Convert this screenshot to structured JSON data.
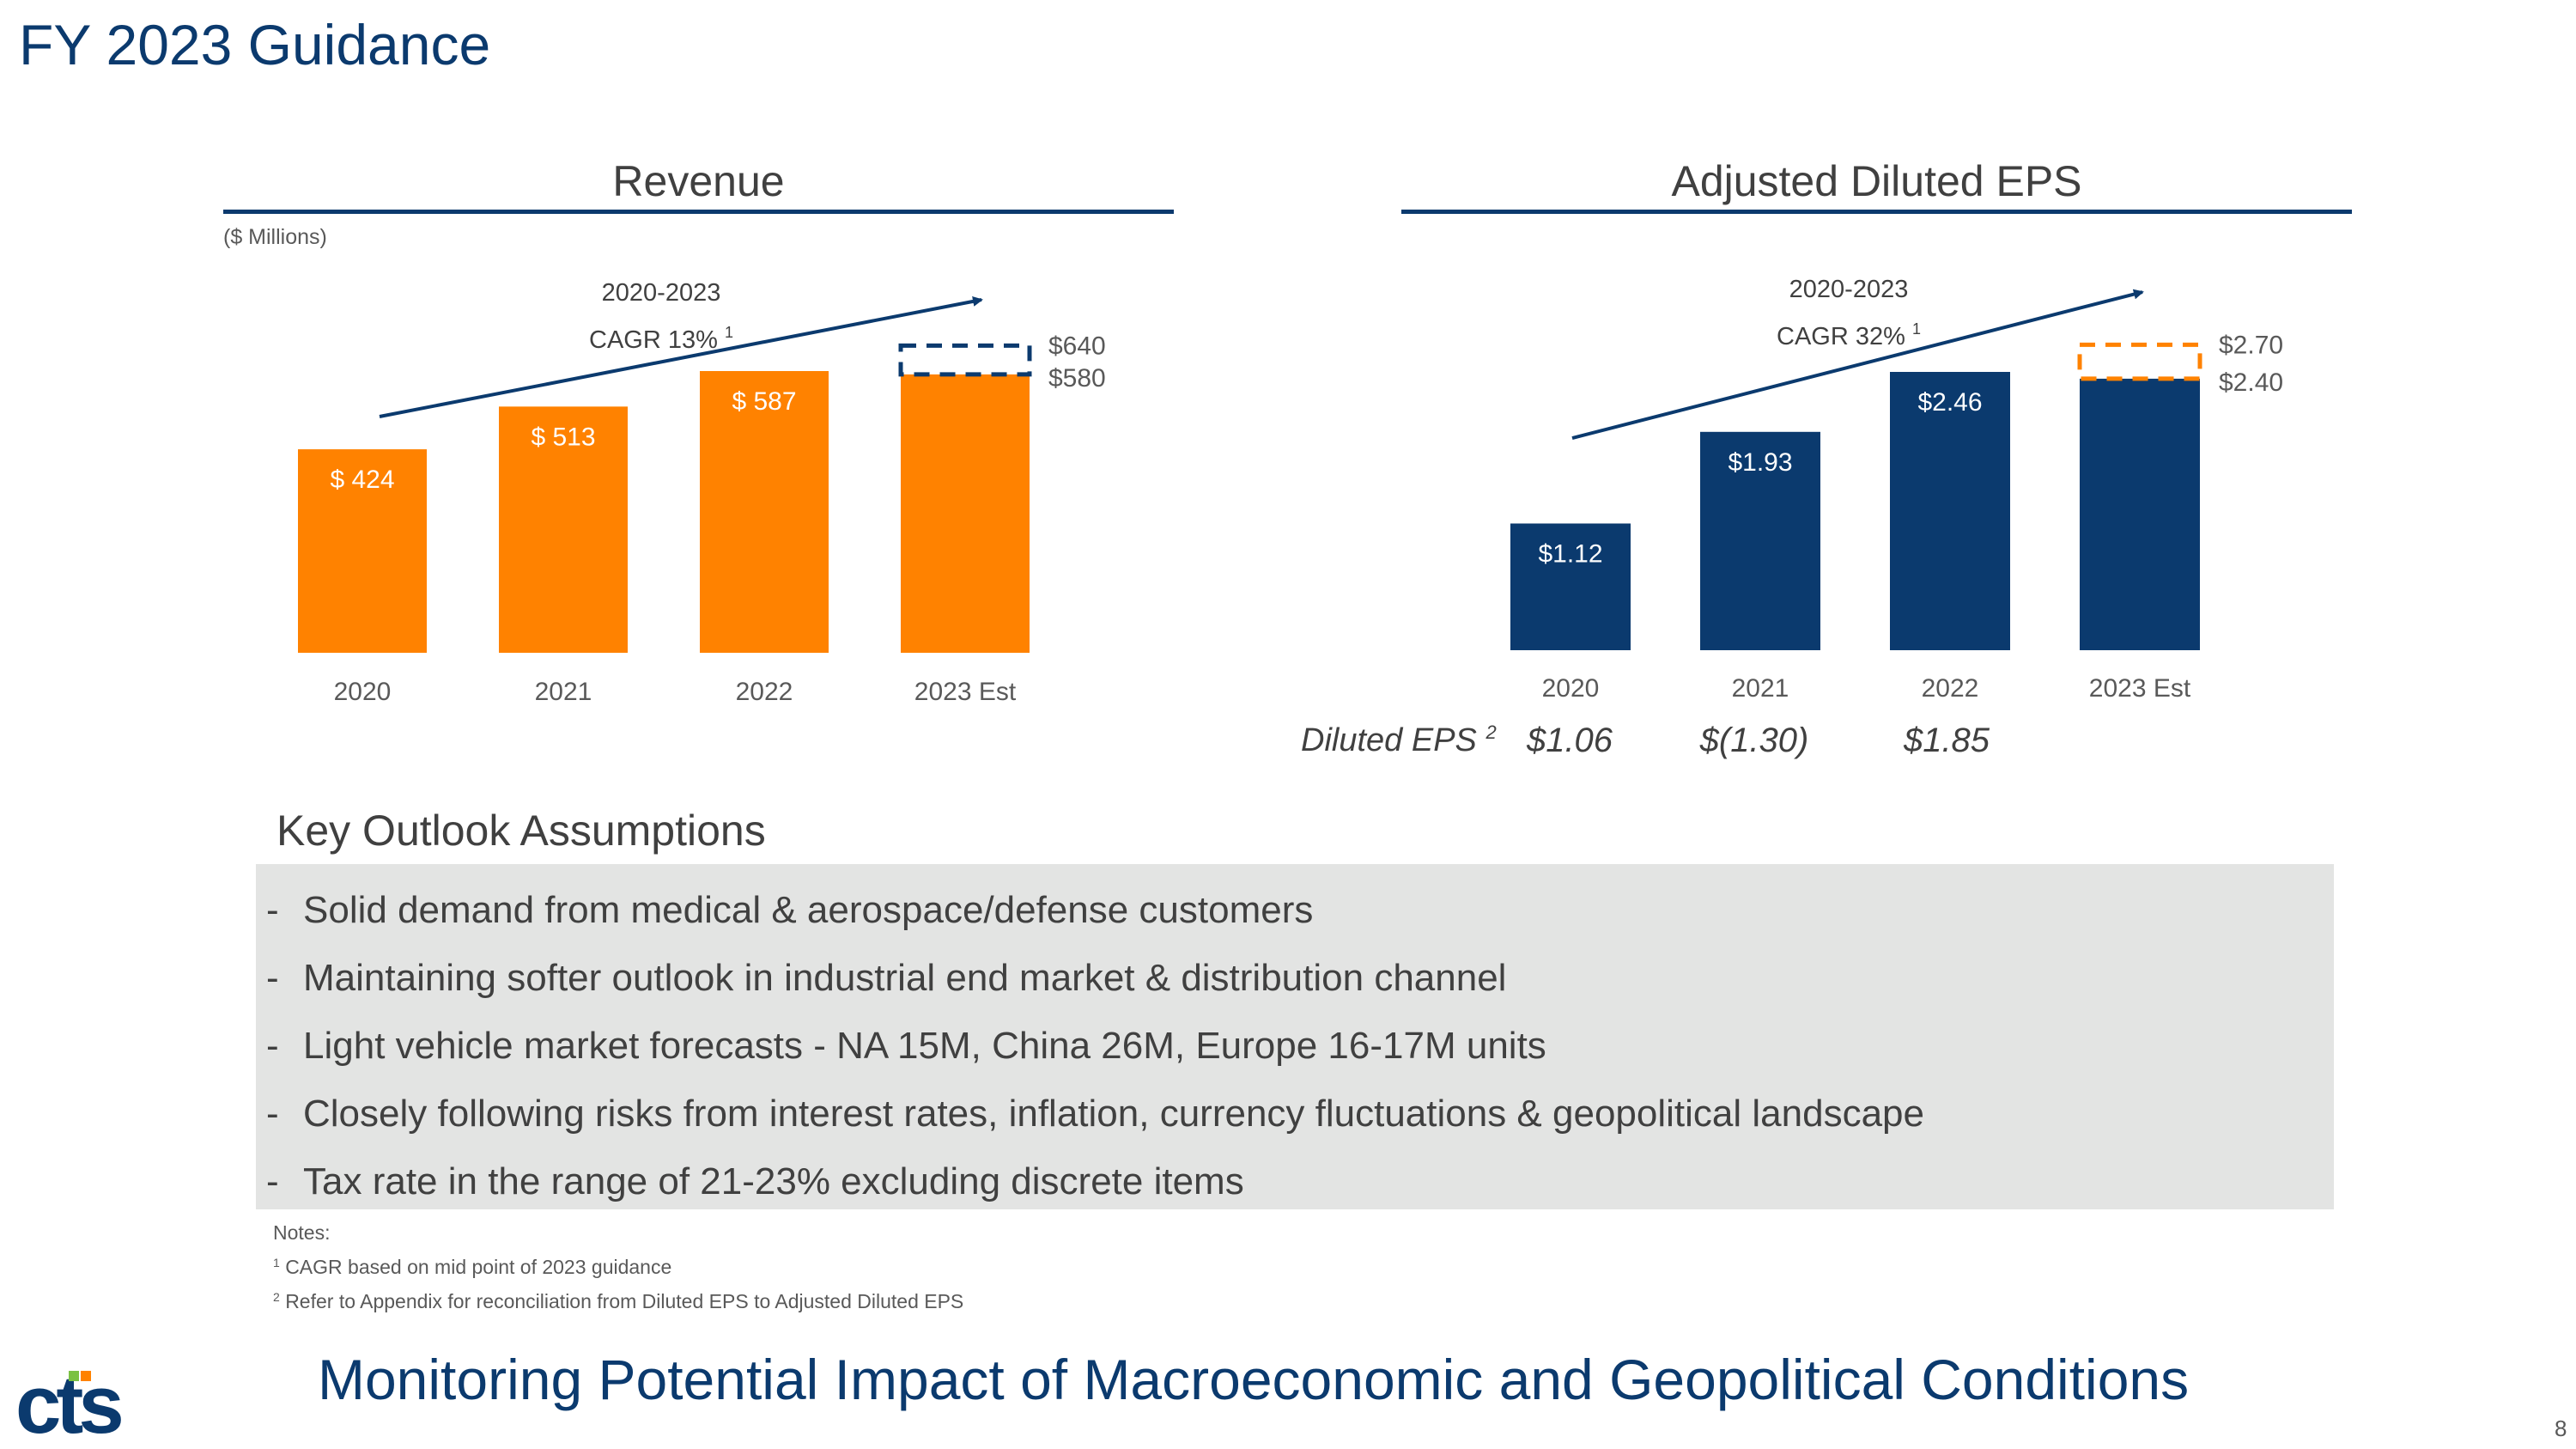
{
  "slide": {
    "title": "FY 2023 Guidance",
    "page_number": "8",
    "footer_banner": "Monitoring Potential Impact of Macroeconomic and Geopolitical Conditions",
    "logo_text": "cts"
  },
  "colors": {
    "brand_navy": "#0b3a6e",
    "revenue_orange": "#ff8200",
    "panel_gray": "#e3e4e3"
  },
  "revenue": {
    "title": "Revenue",
    "units": "($ Millions)",
    "cagr_line1": "2020-2023",
    "cagr_line2": "CAGR 13%",
    "cagr_note": "1"
  },
  "eps": {
    "title": "Adjusted Diluted EPS",
    "cagr_line1": "2020-2023",
    "cagr_line2": "CAGR 32%",
    "cagr_note": "1",
    "diluted_label": "Diluted EPS",
    "diluted_note": "2",
    "diluted_values": [
      "$1.06",
      "$(1.30)",
      "$1.85"
    ]
  },
  "chart_data": [
    {
      "type": "bar",
      "title": "Revenue",
      "ylabel": "($ Millions)",
      "categories": [
        "2020",
        "2021",
        "2022",
        "2023 Est"
      ],
      "values": [
        424,
        513,
        587,
        580
      ],
      "labels": [
        "$ 424",
        "$ 513",
        "$ 587",
        ""
      ],
      "guidance_range": {
        "low": 580,
        "high": 640,
        "low_label": "$580",
        "high_label": "$640"
      },
      "ylim": [
        0,
        650
      ]
    },
    {
      "type": "bar",
      "title": "Adjusted Diluted EPS",
      "categories": [
        "2020",
        "2021",
        "2022",
        "2023 Est"
      ],
      "values": [
        1.12,
        1.93,
        2.46,
        2.4
      ],
      "labels": [
        "$1.12",
        "$1.93",
        "$2.46",
        ""
      ],
      "guidance_range": {
        "low": 2.4,
        "high": 2.7,
        "low_label": "$2.40",
        "high_label": "$2.70"
      },
      "ylim": [
        0,
        2.8
      ]
    }
  ],
  "key_outlook": {
    "title": "Key Outlook Assumptions",
    "bullet_marker": "-",
    "items": [
      "Solid demand from medical & aerospace/defense customers",
      "Maintaining softer outlook in industrial end market & distribution channel",
      "Light vehicle market forecasts - NA 15M, China 26M, Europe 16-17M units",
      "Closely following risks from interest rates, inflation, currency fluctuations & geopolitical landscape",
      "Tax rate in the range of 21-23% excluding discrete items"
    ]
  },
  "notes": {
    "heading": "Notes:",
    "items": [
      {
        "mark": "1",
        "text": "CAGR based on mid point of 2023 guidance"
      },
      {
        "mark": "2",
        "text": "Refer to Appendix for reconciliation from Diluted EPS to Adjusted Diluted EPS"
      }
    ]
  }
}
